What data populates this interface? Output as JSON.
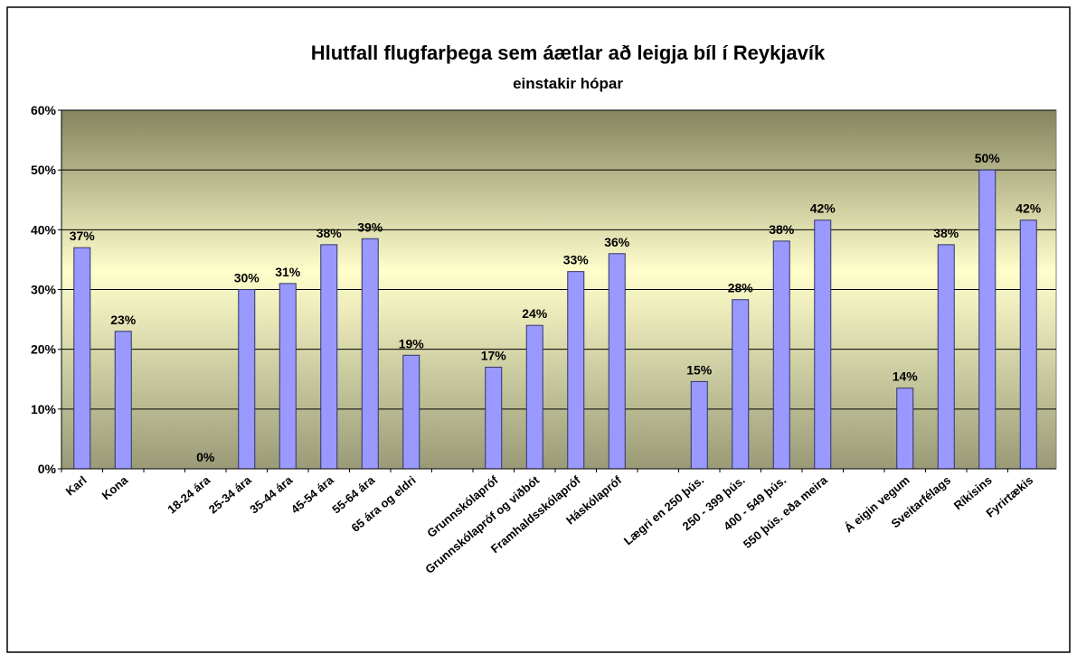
{
  "chart_data": {
    "type": "bar",
    "title": "Hlutfall flugfarþega sem áætlar að leigja bíl í Reykjavík",
    "subtitle": "einstakir hópar",
    "categories": [
      "Karl",
      "Kona",
      null,
      "18-24 ára",
      "25-34 ára",
      "35-44 ára",
      "45-54 ára",
      "55-64 ára",
      "65 ára og eldri",
      null,
      "Grunnskólapróf",
      "Grunnskólapróf og viðbót",
      "Framhaldsskólapróf",
      "Háskólapróf",
      null,
      "Lægri en 250 þús.",
      "250 - 399 þús.",
      "400 - 549 þús.",
      "550 þús. eða meira",
      null,
      "Á eigin vegum",
      "Sveitarfélags",
      "Ríkisins",
      "Fyrirtækis"
    ],
    "values": [
      37,
      23,
      null,
      0,
      30,
      31,
      37.5,
      38.5,
      19,
      null,
      17,
      24,
      33,
      36,
      null,
      14.6,
      28.3,
      38.1,
      41.6,
      null,
      13.5,
      37.5,
      50,
      41.6
    ],
    "value_labels": [
      "37%",
      "23%",
      null,
      "0%",
      "30%",
      "31%",
      "38%",
      "39%",
      "19%",
      null,
      "17%",
      "24%",
      "33%",
      "36%",
      null,
      "15%",
      "28%",
      "38%",
      "42%",
      null,
      "14%",
      "38%",
      "50%",
      "42%"
    ],
    "color": "#9999ff",
    "ylim": [
      0,
      60
    ],
    "yticks": [
      {
        "value": 0,
        "label": "0%"
      },
      {
        "value": 10,
        "label": "10%"
      },
      {
        "value": 20,
        "label": "20%"
      },
      {
        "value": 30,
        "label": "30%"
      },
      {
        "value": 40,
        "label": "40%"
      },
      {
        "value": 50,
        "label": "50%"
      },
      {
        "value": 60,
        "label": "60%"
      }
    ],
    "grid": true
  }
}
